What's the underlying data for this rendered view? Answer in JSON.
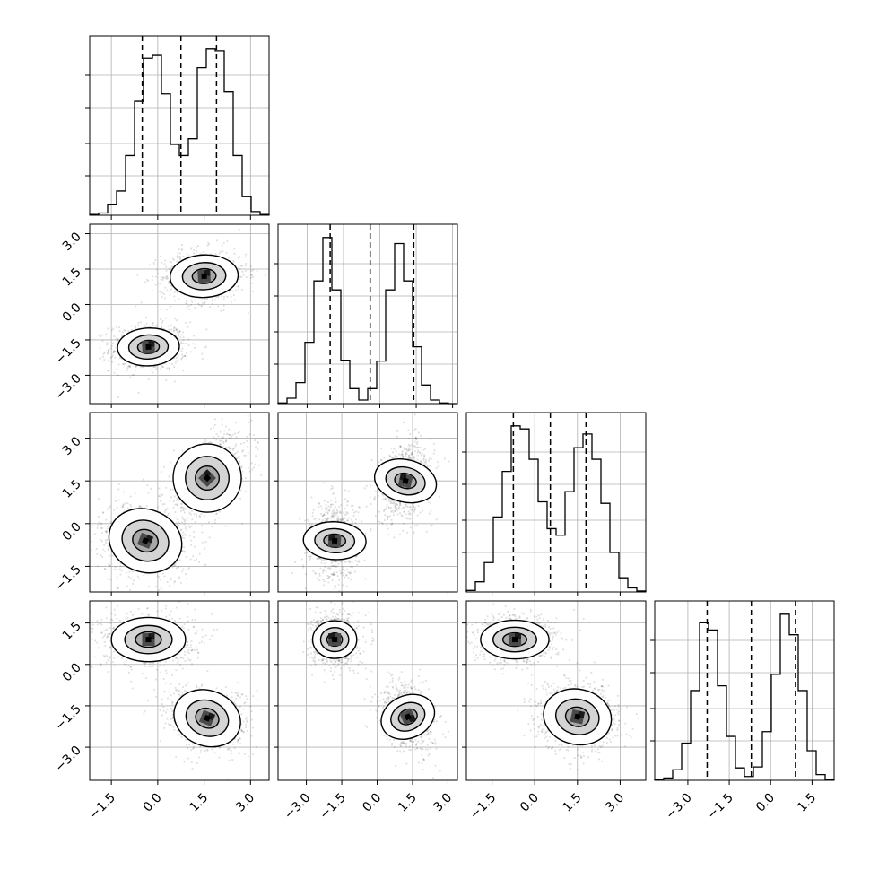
{
  "colors": {
    "line": "#000000",
    "grid": "#b0b0b0",
    "background": "#ffffff",
    "scatter": "#000000"
  },
  "chart_data": {
    "type": "corner",
    "grid": true,
    "n_params": 4,
    "ticks": [
      [
        "-1.5",
        "0.0",
        "1.5",
        "3.0"
      ],
      [
        "-3.0",
        "-1.5",
        "0.0",
        "1.5",
        "3.0"
      ],
      [
        "-1.5",
        "0.0",
        "1.5",
        "3.0"
      ],
      [
        "-3.0",
        "-1.5",
        "0.0",
        "1.5"
      ]
    ],
    "diagonal": [
      {
        "param": 0,
        "range": [
          -2.2,
          3.6
        ],
        "quantile_lines": [
          -0.5,
          0.75,
          1.9
        ],
        "bins": [
          -2.2,
          -1.91,
          -1.62,
          -1.33,
          -1.04,
          -0.75,
          -0.46,
          -0.17,
          0.12,
          0.41,
          0.7,
          0.99,
          1.28,
          1.57,
          1.86,
          2.15,
          2.44,
          2.73,
          3.02,
          3.31,
          3.6
        ],
        "counts": [
          2,
          6,
          28,
          65,
          160,
          305,
          420,
          430,
          325,
          190,
          160,
          205,
          395,
          445,
          440,
          330,
          160,
          50,
          10,
          2
        ]
      },
      {
        "param": 1,
        "range": [
          -4.2,
          3.2
        ],
        "quantile_lines": [
          -2.05,
          -0.4,
          1.4
        ],
        "bins": [
          -4.2,
          -3.83,
          -3.46,
          -3.09,
          -2.72,
          -2.35,
          -1.98,
          -1.61,
          -1.24,
          -0.87,
          -0.5,
          -0.13,
          0.24,
          0.61,
          0.98,
          1.35,
          1.72,
          2.09,
          2.46,
          2.83,
          3.2
        ],
        "counts": [
          2,
          18,
          70,
          205,
          410,
          555,
          380,
          145,
          50,
          12,
          50,
          142,
          380,
          535,
          410,
          190,
          62,
          12,
          2,
          0
        ]
      },
      {
        "param": 2,
        "range": [
          -2.4,
          3.9
        ],
        "quantile_lines": [
          -0.75,
          0.55,
          1.8
        ],
        "bins": [
          -2.4,
          -2.085,
          -1.77,
          -1.455,
          -1.14,
          -0.825,
          -0.51,
          -0.195,
          0.12,
          0.435,
          0.75,
          1.065,
          1.38,
          1.695,
          2.01,
          2.325,
          2.64,
          2.955,
          3.27,
          3.585,
          3.9
        ],
        "counts": [
          3,
          20,
          58,
          148,
          238,
          328,
          322,
          262,
          178,
          125,
          112,
          198,
          285,
          312,
          262,
          175,
          78,
          28,
          8,
          2
        ]
      },
      {
        "param": 3,
        "range": [
          -4.2,
          2.3
        ],
        "quantile_lines": [
          -2.3,
          -0.7,
          0.9
        ],
        "bins": [
          -4.2,
          -3.875,
          -3.55,
          -3.225,
          -2.9,
          -2.575,
          -2.25,
          -1.925,
          -1.6,
          -1.275,
          -0.95,
          -0.625,
          -0.3,
          0.025,
          0.35,
          0.675,
          1.0,
          1.325,
          1.65,
          1.975,
          2.3
        ],
        "counts": [
          2,
          5,
          22,
          78,
          188,
          330,
          315,
          198,
          92,
          26,
          8,
          28,
          102,
          222,
          348,
          305,
          188,
          62,
          12,
          2
        ]
      }
    ],
    "pairs": [
      {
        "x_param": 0,
        "y_param": 1,
        "clusters": [
          {
            "mean": [
              -0.3,
              -1.8
            ],
            "sd": [
              0.5,
              0.4
            ],
            "rho": 0.05,
            "n": 1400
          },
          {
            "mean": [
              1.5,
              1.2
            ],
            "sd": [
              0.55,
              0.45
            ],
            "rho": 0.05,
            "n": 1400
          }
        ]
      },
      {
        "x_param": 0,
        "y_param": 2,
        "clusters": [
          {
            "mean": [
              -0.4,
              -0.6
            ],
            "sd": [
              0.6,
              0.55
            ],
            "rho": -0.15,
            "n": 1400
          },
          {
            "mean": [
              1.6,
              1.6
            ],
            "sd": [
              0.55,
              0.6
            ],
            "rho": 0.5,
            "n": 1400
          }
        ]
      },
      {
        "x_param": 1,
        "y_param": 2,
        "clusters": [
          {
            "mean": [
              -1.8,
              -0.6
            ],
            "sd": [
              0.4,
              0.55
            ],
            "rho": 0.05,
            "n": 1400
          },
          {
            "mean": [
              1.2,
              1.5
            ],
            "sd": [
              0.45,
              0.55
            ],
            "rho": 0.2,
            "n": 1400
          }
        ]
      },
      {
        "x_param": 0,
        "y_param": 3,
        "clusters": [
          {
            "mean": [
              -0.3,
              0.9
            ],
            "sd": [
              0.6,
              0.4
            ],
            "rho": 0.0,
            "n": 1400
          },
          {
            "mean": [
              1.6,
              -1.95
            ],
            "sd": [
              0.55,
              0.5
            ],
            "rho": -0.2,
            "n": 1400
          }
        ]
      },
      {
        "x_param": 1,
        "y_param": 3,
        "clusters": [
          {
            "mean": [
              -1.8,
              0.9
            ],
            "sd": [
              0.4,
              0.4
            ],
            "rho": 0.0,
            "n": 1400
          },
          {
            "mean": [
              1.3,
              -1.9
            ],
            "sd": [
              0.45,
              0.5
            ],
            "rho": -0.3,
            "n": 1400
          }
        ]
      },
      {
        "x_param": 2,
        "y_param": 3,
        "clusters": [
          {
            "mean": [
              -0.7,
              0.9
            ],
            "sd": [
              0.6,
              0.35
            ],
            "rho": 0.0,
            "n": 1400
          },
          {
            "mean": [
              1.5,
              -1.9
            ],
            "sd": [
              0.6,
              0.5
            ],
            "rho": -0.1,
            "n": 1400
          }
        ]
      }
    ]
  }
}
